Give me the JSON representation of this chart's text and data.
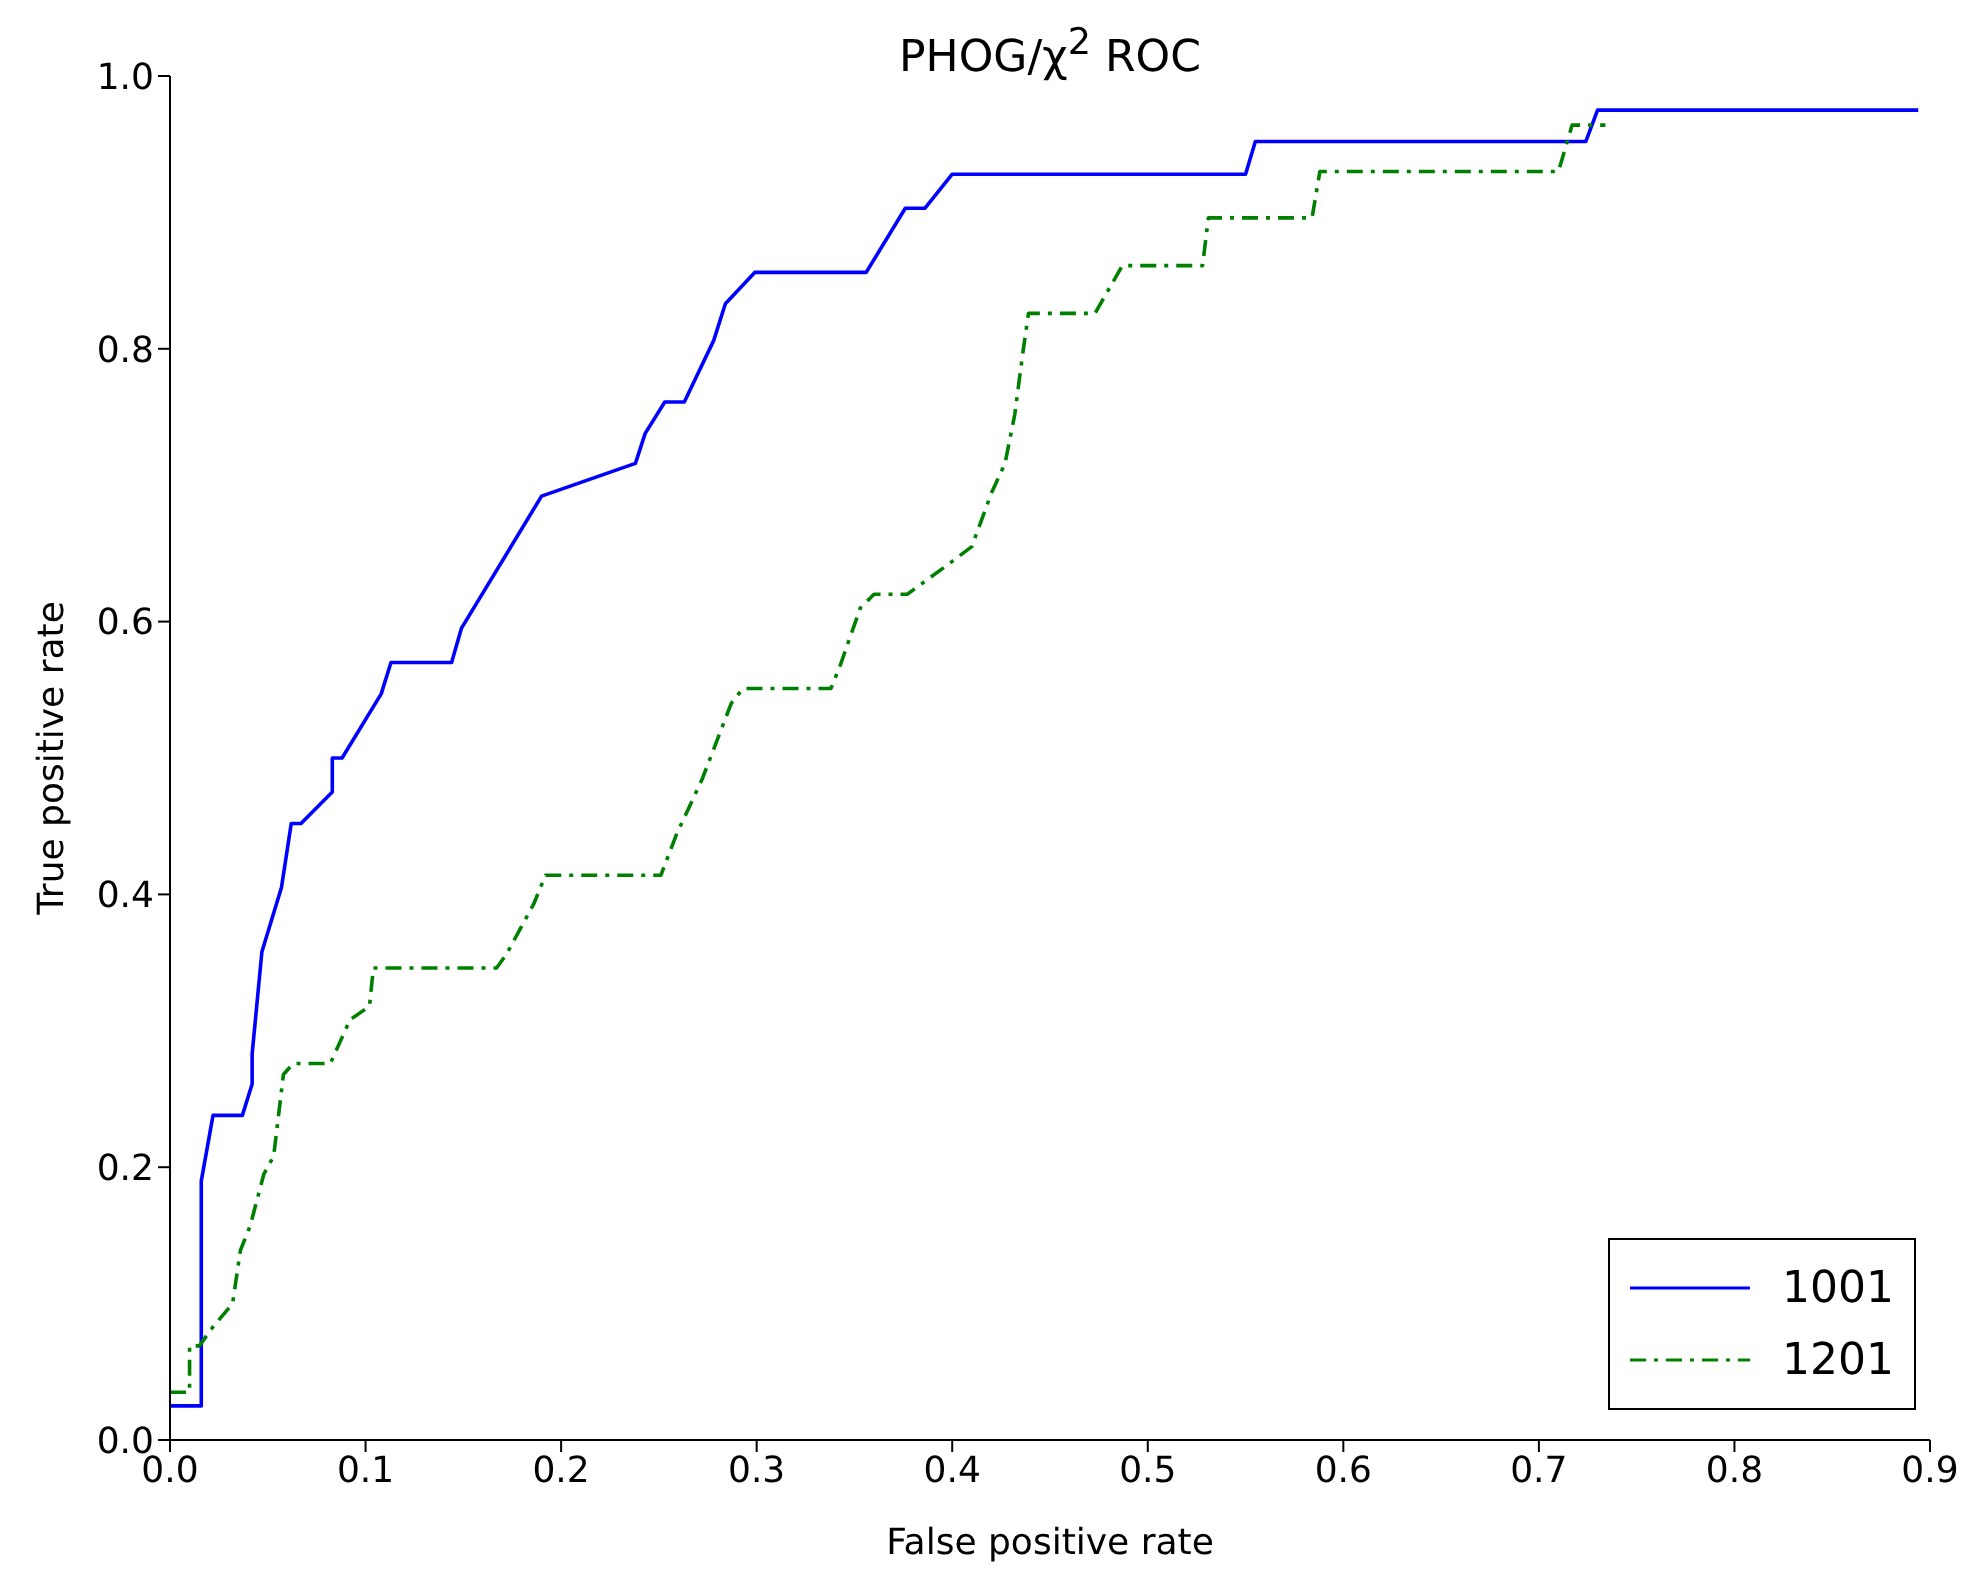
{
  "chart_data": {
    "type": "line",
    "title": "PHOG/χ$^{2}$  ROC",
    "xlabel": "False positive rate",
    "ylabel": "True positive rate",
    "xlim": [
      0,
      0.9
    ],
    "xticks": [
      {
        "value": 0,
        "label": "0.0"
      },
      0.1,
      0.2,
      0.3,
      0.4,
      0.5,
      0.6,
      0.7,
      0.8,
      0.9
    ],
    "ylim": [
      0,
      1
    ],
    "yticks": [
      {
        "value": 0,
        "label": "0.0"
      },
      0.2,
      0.4,
      0.6,
      0.8,
      {
        "value": 1,
        "label": "1.0"
      }
    ],
    "grid": false,
    "legend": "bottom right",
    "marker": "none",
    "series": [
      {
        "name": "1001",
        "color": "#0000ff",
        "line_style": "solid",
        "x": [
          0,
          0.016,
          0.016,
          0.022,
          0.037,
          0.042,
          0.042,
          0.047,
          0.057,
          0.062,
          0.067,
          0.083,
          0.083,
          0.088,
          0.108,
          0.113,
          0.144,
          0.149,
          0.19,
          0.238,
          0.243,
          0.253,
          0.263,
          0.278,
          0.284,
          0.299,
          0.356,
          0.376,
          0.386,
          0.4,
          0.55,
          0.555,
          0.724,
          0.73,
          0.894
        ],
        "values": [
          0.025,
          0.025,
          0.19,
          0.238,
          0.238,
          0.261,
          0.283,
          0.358,
          0.405,
          0.452,
          0.452,
          0.475,
          0.5,
          0.5,
          0.547,
          0.57,
          0.57,
          0.595,
          0.692,
          0.716,
          0.738,
          0.761,
          0.761,
          0.806,
          0.833,
          0.856,
          0.856,
          0.903,
          0.903,
          0.928,
          0.928,
          0.952,
          0.952,
          0.975,
          0.975
        ]
      },
      {
        "name": "1201",
        "color": "#008000",
        "line_style": "dashed",
        "x": [
          0,
          0.01,
          0.01,
          0.015,
          0.022,
          0.032,
          0.036,
          0.041,
          0.048,
          0.053,
          0.058,
          0.063,
          0.082,
          0.092,
          0.102,
          0.104,
          0.167,
          0.172,
          0.186,
          0.192,
          0.234,
          0.251,
          0.259,
          0.272,
          0.287,
          0.293,
          0.338,
          0.343,
          0.353,
          0.36,
          0.377,
          0.398,
          0.41,
          0.42,
          0.427,
          0.432,
          0.436,
          0.439,
          0.473,
          0.487,
          0.528,
          0.531,
          0.584,
          0.588,
          0.71,
          0.717,
          0.734
        ],
        "values": [
          0.035,
          0.035,
          0.069,
          0.069,
          0.083,
          0.1,
          0.139,
          0.157,
          0.195,
          0.208,
          0.268,
          0.276,
          0.276,
          0.308,
          0.318,
          0.346,
          0.346,
          0.356,
          0.393,
          0.414,
          0.414,
          0.414,
          0.444,
          0.484,
          0.54,
          0.551,
          0.551,
          0.569,
          0.61,
          0.62,
          0.62,
          0.642,
          0.655,
          0.694,
          0.716,
          0.752,
          0.796,
          0.826,
          0.826,
          0.861,
          0.861,
          0.896,
          0.896,
          0.93,
          0.93,
          0.964,
          0.964
        ]
      }
    ]
  }
}
